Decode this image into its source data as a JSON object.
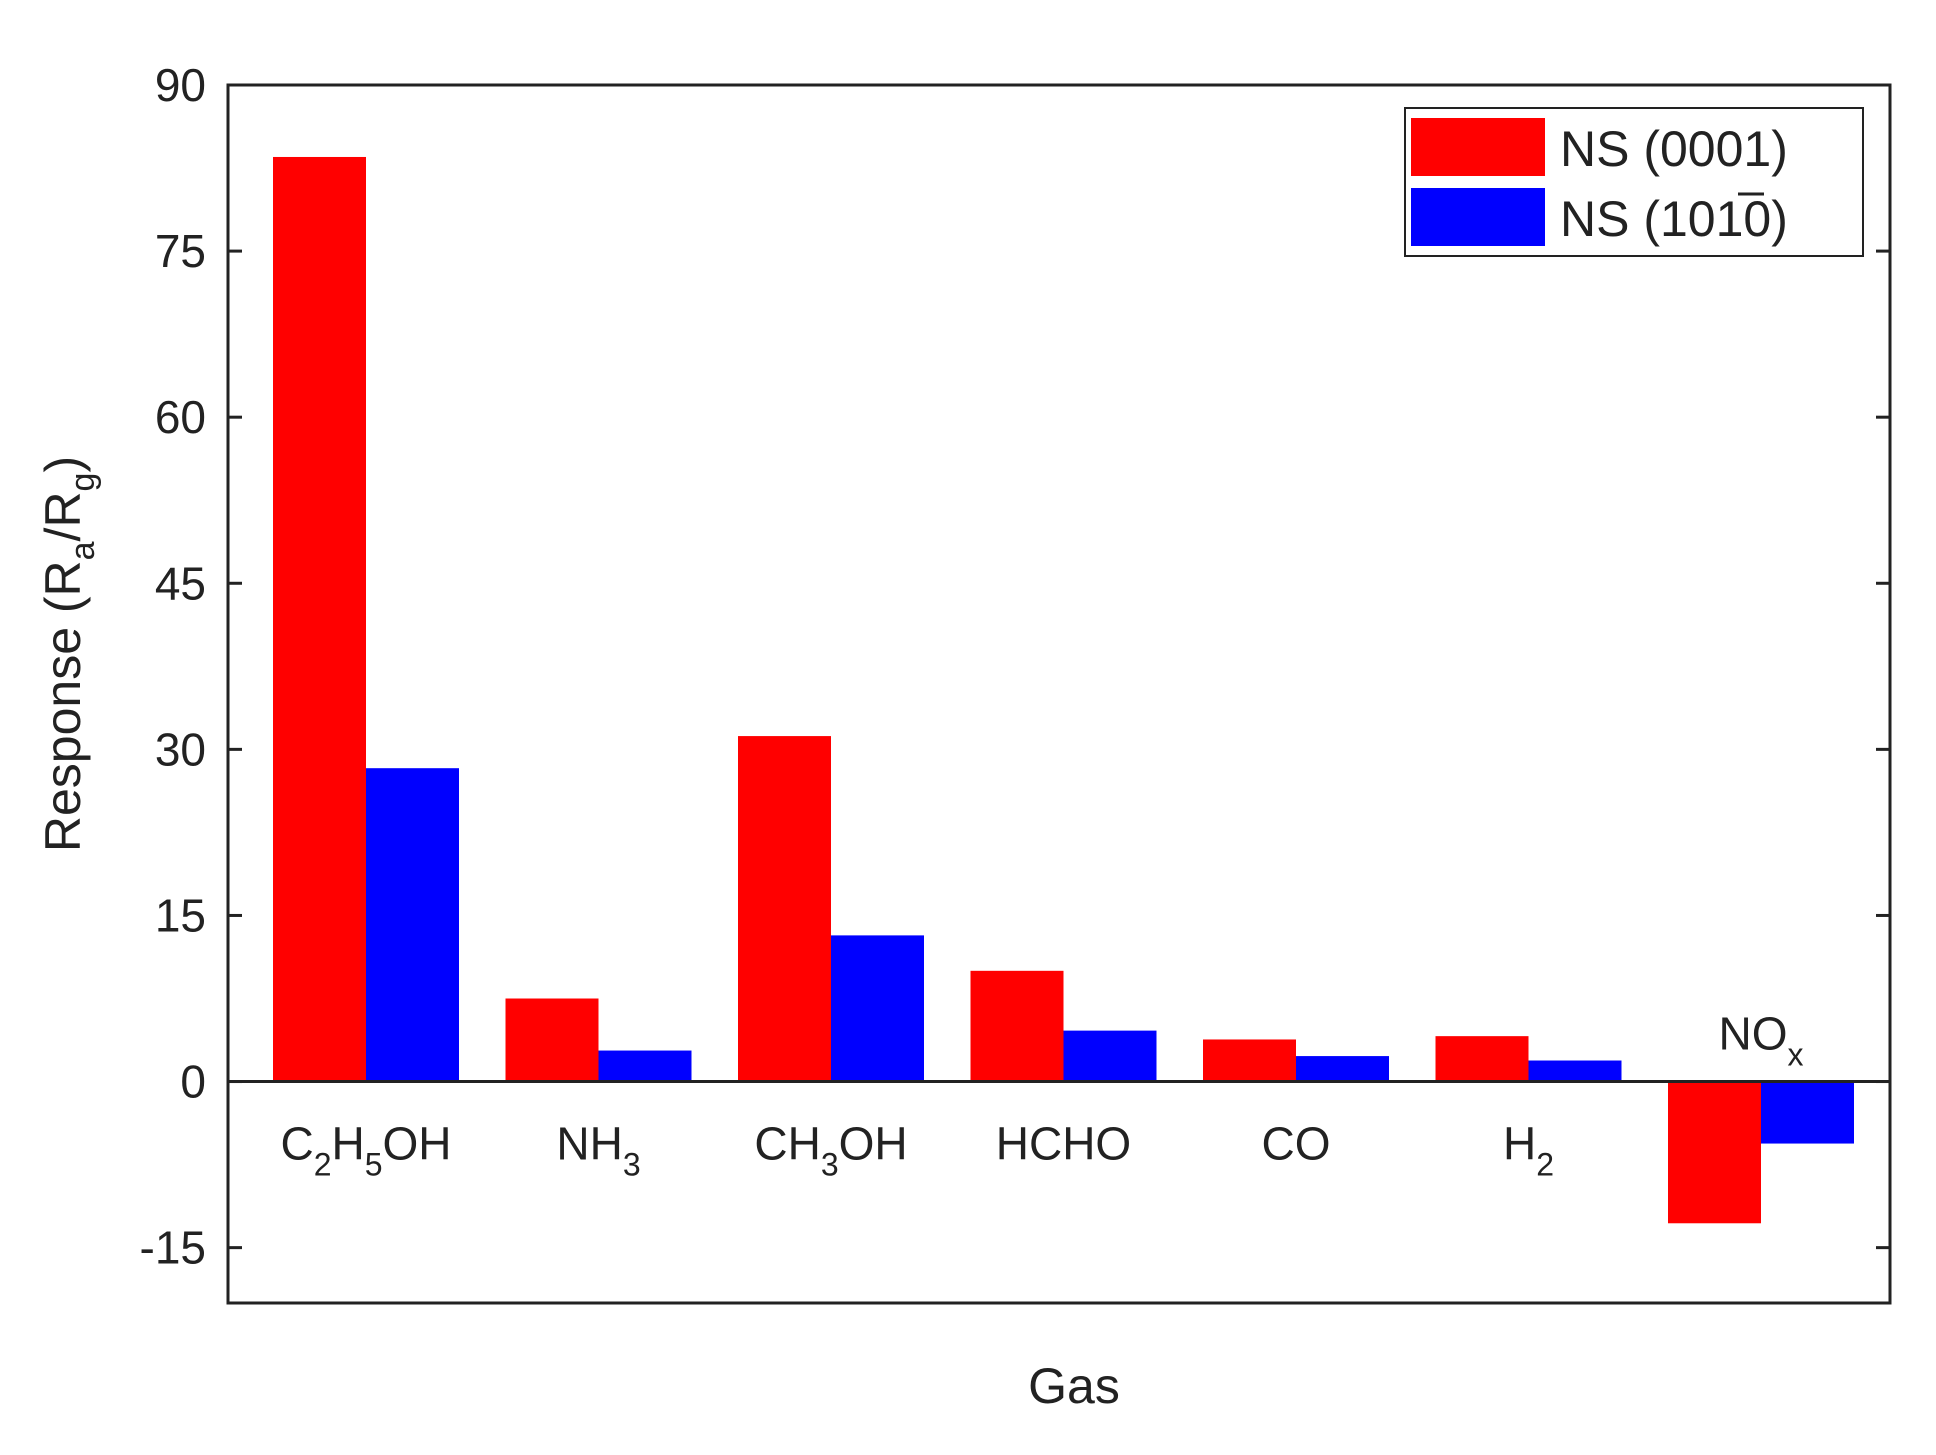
{
  "colors": {
    "series_0": "#ff0000",
    "series_1": "#0000ff",
    "axis": "#222222",
    "background": "#ffffff"
  },
  "chart_data": {
    "type": "bar",
    "title": "",
    "xlabel": "Gas",
    "ylabel": "Response (Ra/Rg)",
    "ylabel_parts": {
      "pre": "Response (R",
      "sub1": "a",
      "mid": "/R",
      "sub2": "g",
      "post": ")"
    },
    "ylim": [
      -20,
      90
    ],
    "yticks": [
      -15,
      0,
      15,
      30,
      45,
      60,
      75,
      90
    ],
    "categories": [
      "C2H5OH",
      "NH3",
      "CH3OH",
      "HCHO",
      "CO",
      "H2",
      "NOx"
    ],
    "category_labels": [
      {
        "base": "C",
        "sub": "2",
        "base2": "H",
        "sub2": "5",
        "rest": "OH"
      },
      {
        "base": "NH",
        "sub": "3"
      },
      {
        "base": "CH",
        "sub": "3",
        "rest": "OH"
      },
      {
        "base": "HCHO"
      },
      {
        "base": "CO"
      },
      {
        "base": "H",
        "sub": "2"
      },
      {
        "base": "NO",
        "sub": "x"
      }
    ],
    "series": [
      {
        "name": "NS (0001)",
        "values": [
          83.5,
          7.5,
          31.2,
          10.0,
          3.8,
          4.1,
          -12.8
        ]
      },
      {
        "name": "NS (10-10)",
        "values": [
          28.3,
          2.8,
          13.2,
          4.6,
          2.3,
          1.9,
          -5.6
        ]
      }
    ],
    "legend": {
      "position": "top-right",
      "entries": [
        {
          "text": "NS (0001)"
        },
        {
          "text": "NS (1010)",
          "bar_over": "1"
        }
      ]
    },
    "grid": false
  }
}
